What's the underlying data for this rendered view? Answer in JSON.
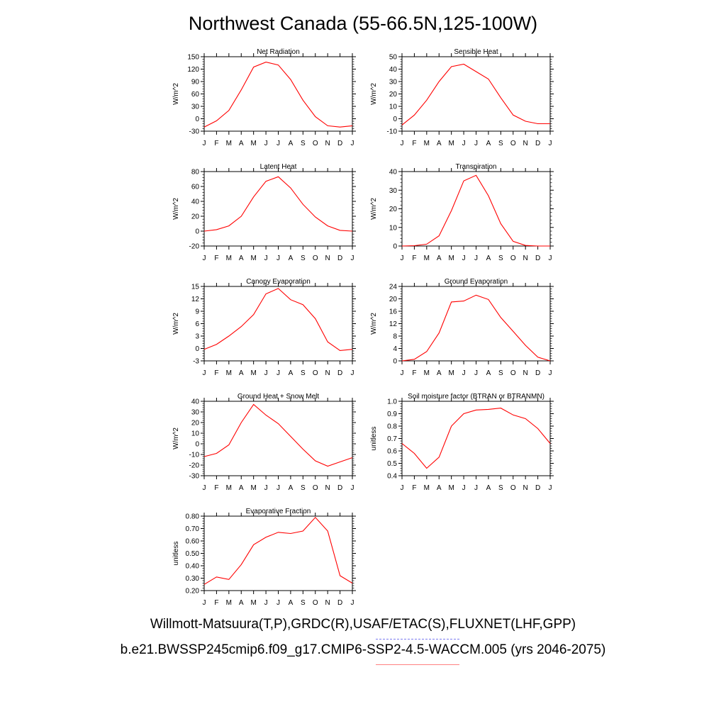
{
  "page_title": "Northwest Canada (55-66.5N,125-100W)",
  "legend": {
    "observations": "Willmott-Matsuura(T,P),GRDC(R),USAF/ETAC(S),FLUXNET(LHF,GPP)",
    "model": "b.e21.BWSSP245cmip6.f09_g17.CMIP6-SSP2-4.5-WACCM.005 (yrs 2046-2075)",
    "observations_color": "#7b7bf0",
    "model_color": "#ff8080",
    "line_color": "#ff0000"
  },
  "chart_data": [
    {
      "type": "line",
      "title": "Net Radiation",
      "ylabel": "W/m^2",
      "x": [
        "J",
        "F",
        "M",
        "A",
        "M",
        "J",
        "J",
        "A",
        "S",
        "O",
        "N",
        "D",
        "J"
      ],
      "yticks": [
        -30,
        0,
        30,
        60,
        90,
        120,
        150
      ],
      "ylim": [
        -30,
        150
      ],
      "series": [
        {
          "values": [
            -20,
            -5,
            20,
            70,
            125,
            137,
            130,
            95,
            45,
            5,
            -17,
            -20,
            -17
          ]
        }
      ]
    },
    {
      "type": "line",
      "title": "Sensible Heat",
      "ylabel": "W/m^2",
      "x": [
        "J",
        "F",
        "M",
        "A",
        "M",
        "J",
        "J",
        "A",
        "S",
        "O",
        "N",
        "D",
        "J"
      ],
      "yticks": [
        -10,
        0,
        10,
        20,
        30,
        40,
        50
      ],
      "ylim": [
        -10,
        50
      ],
      "series": [
        {
          "values": [
            -5,
            3,
            15,
            30,
            42,
            44,
            38,
            32,
            17,
            3,
            -2,
            -4,
            -4
          ]
        }
      ]
    },
    {
      "type": "line",
      "title": "Latent Heat",
      "ylabel": "W/m^2",
      "x": [
        "J",
        "F",
        "M",
        "A",
        "M",
        "J",
        "J",
        "A",
        "S",
        "O",
        "N",
        "D",
        "J"
      ],
      "yticks": [
        -20,
        0,
        20,
        40,
        60,
        80
      ],
      "ylim": [
        -20,
        80
      ],
      "series": [
        {
          "values": [
            0,
            2,
            7,
            20,
            46,
            67,
            73,
            58,
            36,
            19,
            7,
            1,
            0
          ]
        }
      ]
    },
    {
      "type": "line",
      "title": "Transpiration",
      "ylabel": "W/m^2",
      "x": [
        "J",
        "F",
        "M",
        "A",
        "M",
        "J",
        "J",
        "A",
        "S",
        "O",
        "N",
        "D",
        "J"
      ],
      "yticks": [
        0,
        10,
        20,
        30,
        40
      ],
      "ylim": [
        0,
        40
      ],
      "series": [
        {
          "values": [
            0,
            0.2,
            1,
            5.5,
            19,
            35,
            38,
            27,
            12,
            2.5,
            0.3,
            0,
            0
          ]
        }
      ]
    },
    {
      "type": "line",
      "title": "Canopy Evaporation",
      "ylabel": "W/m^2",
      "x": [
        "J",
        "F",
        "M",
        "A",
        "M",
        "J",
        "J",
        "A",
        "S",
        "O",
        "N",
        "D",
        "J"
      ],
      "yticks": [
        -3,
        0,
        3,
        6,
        9,
        12,
        15
      ],
      "ylim": [
        -3,
        15
      ],
      "series": [
        {
          "values": [
            -0.2,
            1,
            3,
            5.3,
            8.2,
            13.2,
            14.5,
            11.8,
            10.6,
            7.2,
            1.6,
            -0.5,
            -0.2
          ]
        }
      ]
    },
    {
      "type": "line",
      "title": "Ground Evaporation",
      "ylabel": "W/m^2",
      "x": [
        "J",
        "F",
        "M",
        "A",
        "M",
        "J",
        "J",
        "A",
        "S",
        "O",
        "N",
        "D",
        "J"
      ],
      "yticks": [
        0,
        4,
        8,
        12,
        16,
        20,
        24
      ],
      "ylim": [
        0,
        24
      ],
      "series": [
        {
          "values": [
            0,
            0.5,
            3,
            9,
            19,
            19.3,
            21.2,
            19.8,
            14,
            9.5,
            5,
            1.2,
            0
          ]
        }
      ]
    },
    {
      "type": "line",
      "title": "Ground Heat + Snow Melt",
      "ylabel": "W/m^2",
      "x": [
        "J",
        "F",
        "M",
        "A",
        "M",
        "J",
        "J",
        "A",
        "S",
        "O",
        "N",
        "D",
        "J"
      ],
      "yticks": [
        -30,
        -20,
        -10,
        0,
        10,
        20,
        30,
        40
      ],
      "ylim": [
        -30,
        40
      ],
      "series": [
        {
          "values": [
            -12,
            -9,
            -1,
            20,
            37,
            27,
            19,
            7,
            -5,
            -16,
            -21,
            -17,
            -13
          ]
        }
      ]
    },
    {
      "type": "line",
      "title": "Soil moisture factor (BTRAN or BTRANMN)",
      "ylabel": "unitless",
      "x": [
        "J",
        "F",
        "M",
        "A",
        "M",
        "J",
        "J",
        "A",
        "S",
        "O",
        "N",
        "D",
        "J"
      ],
      "yticks": [
        "0.4",
        "0.5",
        "0.6",
        "0.7",
        "0.8",
        "0.9",
        "1.0"
      ],
      "ylim": [
        0.4,
        1.0
      ],
      "series": [
        {
          "values": [
            0.66,
            0.58,
            0.46,
            0.55,
            0.8,
            0.9,
            0.93,
            0.935,
            0.945,
            0.89,
            0.86,
            0.78,
            0.66
          ]
        }
      ]
    },
    {
      "type": "line",
      "title": "Evaporative Fraction",
      "ylabel": "unitless",
      "x": [
        "J",
        "F",
        "M",
        "A",
        "M",
        "J",
        "J",
        "A",
        "S",
        "O",
        "N",
        "D",
        "J"
      ],
      "yticks": [
        "0.20",
        "0.30",
        "0.40",
        "0.50",
        "0.60",
        "0.70",
        "0.80"
      ],
      "ylim": [
        0.2,
        0.8
      ],
      "series": [
        {
          "values": [
            0.25,
            0.31,
            0.29,
            0.41,
            0.57,
            0.63,
            0.67,
            0.66,
            0.68,
            0.79,
            0.68,
            0.32,
            0.26
          ]
        }
      ]
    }
  ]
}
